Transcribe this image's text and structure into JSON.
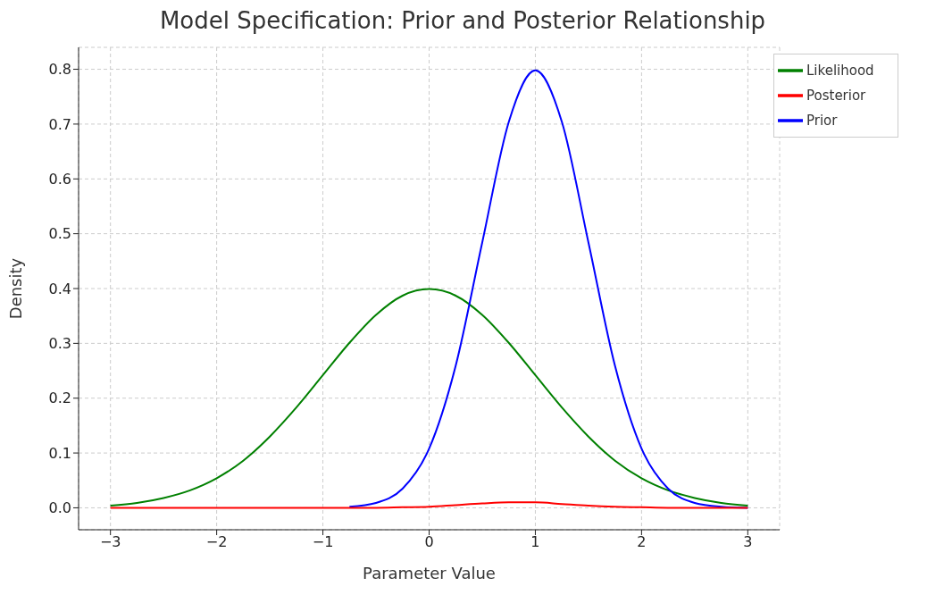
{
  "chart_data": {
    "type": "line",
    "title": "Model Specification: Prior and Posterior Relationship",
    "xlabel": "Parameter Value",
    "ylabel": "Density",
    "x": [
      -3,
      -2.75,
      -2.5,
      -2.25,
      -2,
      -1.75,
      -1.5,
      -1.25,
      -1,
      -0.75,
      -0.5,
      -0.25,
      0,
      0.25,
      0.5,
      0.75,
      1,
      1.25,
      1.5,
      1.75,
      2,
      2.25,
      2.5,
      2.75,
      3
    ],
    "series": [
      {
        "name": "Likelihood",
        "color": "#008000",
        "values": [
          0.004,
          0.009,
          0.018,
          0.032,
          0.054,
          0.086,
          0.13,
          0.183,
          0.242,
          0.301,
          0.352,
          0.387,
          0.399,
          0.387,
          0.352,
          0.301,
          0.242,
          0.183,
          0.13,
          0.086,
          0.054,
          0.032,
          0.018,
          0.009,
          0.004
        ]
      },
      {
        "name": "Prior",
        "color": "#0000ff",
        "values": [
          null,
          null,
          null,
          null,
          null,
          null,
          null,
          null,
          null,
          0.002,
          0.009,
          0.035,
          0.108,
          0.259,
          0.484,
          0.704,
          0.798,
          0.704,
          0.484,
          0.259,
          0.108,
          0.035,
          0.009,
          0.002,
          0
        ]
      },
      {
        "name": "Posterior",
        "color": "#ff0000",
        "values": [
          0,
          0,
          0,
          0,
          0,
          0,
          0,
          0,
          0,
          0,
          0,
          0.001,
          0.002,
          0.005,
          0.008,
          0.01,
          0.01,
          0.007,
          0.004,
          0.002,
          0.001,
          0,
          0,
          0,
          0
        ]
      }
    ],
    "xlim": [
      -3.3,
      3.3
    ],
    "ylim": [
      -0.04,
      0.84
    ],
    "xticks": [
      {
        "value": -3,
        "label": "−3"
      },
      {
        "value": -2,
        "label": "−2"
      },
      {
        "value": -1,
        "label": "−1"
      },
      0,
      1,
      2,
      3
    ],
    "yticks": [
      {
        "value": 0,
        "label": "0.0"
      },
      0.1,
      0.2,
      0.3,
      0.4,
      0.5,
      0.6,
      0.7,
      0.8
    ],
    "grid": true,
    "legend": "top right",
    "marker": "none",
    "line_style": "solid"
  }
}
